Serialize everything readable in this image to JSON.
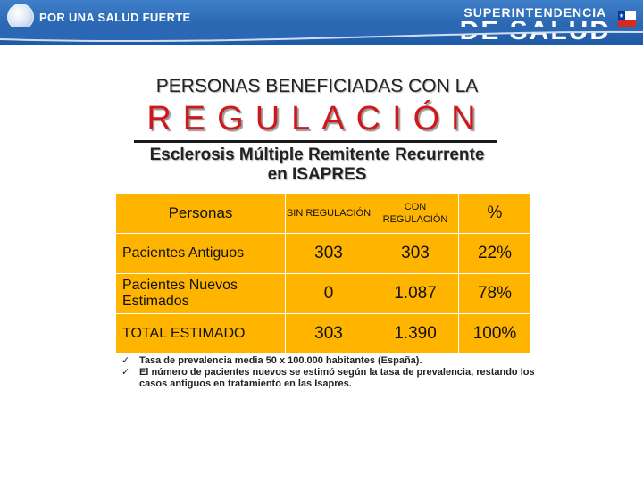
{
  "header": {
    "left_brand": "POR UNA SALUD FUERTE",
    "right_brand_line1": "SUPERINTENDENCIA",
    "right_brand_line2": "DE SALUD",
    "colors": {
      "bar": "#2b67b3"
    },
    "icons": [
      "globe-logo",
      "chile-flag-icon"
    ]
  },
  "title": {
    "line1": "PERSONAS BENEFICIADAS CON LA",
    "line2": "REGULACIÓN",
    "subtitle_line1": "Esclerosis Múltiple Remitente Recurrente",
    "subtitle_line2": "en ISAPRES"
  },
  "table": {
    "headers": [
      "Personas",
      "SIN REGULACIÓN",
      "CON REGULACIÓN",
      "%"
    ],
    "rows": [
      [
        "Pacientes Antiguos",
        "303",
        "303",
        "22%"
      ],
      [
        "Pacientes Nuevos Estimados",
        "0",
        "1.087",
        "78%"
      ],
      [
        "TOTAL ESTIMADO",
        "303",
        "1.390",
        "100%"
      ]
    ],
    "colors": {
      "cell": "#ffb500",
      "title_red": "#d01818"
    }
  },
  "notes": [
    "Tasa de prevalencia media 50 x 100.000 habitantes (España).",
    "El número de pacientes nuevos se estimó según la tasa de prevalencia, restando los casos antiguos en tratamiento en las Isapres."
  ]
}
